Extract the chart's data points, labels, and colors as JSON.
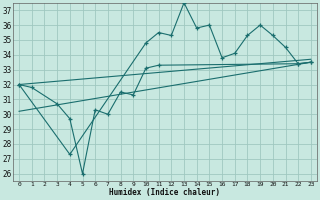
{
  "xlabel": "Humidex (Indice chaleur)",
  "background_color": "#c8e8e0",
  "grid_color": "#a0c8c0",
  "line_color": "#1a6e6e",
  "xlim": [
    -0.5,
    23.5
  ],
  "ylim": [
    25.5,
    37.5
  ],
  "yticks": [
    26,
    27,
    28,
    29,
    30,
    31,
    32,
    33,
    34,
    35,
    36,
    37
  ],
  "xticks": [
    0,
    1,
    2,
    3,
    4,
    5,
    6,
    7,
    8,
    9,
    10,
    11,
    12,
    13,
    14,
    15,
    16,
    17,
    18,
    19,
    20,
    21,
    22,
    23
  ],
  "line1_x": [
    0,
    1,
    3,
    4,
    5,
    6,
    7,
    8,
    9,
    10,
    11,
    22,
    23
  ],
  "line1_y": [
    32.0,
    31.8,
    30.7,
    29.7,
    26.0,
    30.3,
    30.0,
    31.5,
    31.3,
    33.1,
    33.3,
    33.4,
    33.5
  ],
  "line2_x": [
    0,
    4,
    10,
    11,
    12,
    13,
    14,
    15,
    16,
    17,
    18,
    19,
    20,
    21,
    22,
    23
  ],
  "line2_y": [
    32.0,
    27.3,
    34.8,
    35.5,
    35.3,
    37.5,
    35.8,
    36.0,
    33.8,
    34.1,
    35.3,
    36.0,
    35.3,
    34.5,
    33.4,
    33.5
  ],
  "trend1_x": [
    0,
    23
  ],
  "trend1_y": [
    32.0,
    33.7
  ],
  "trend2_x": [
    0,
    23
  ],
  "trend2_y": [
    30.2,
    33.5
  ]
}
